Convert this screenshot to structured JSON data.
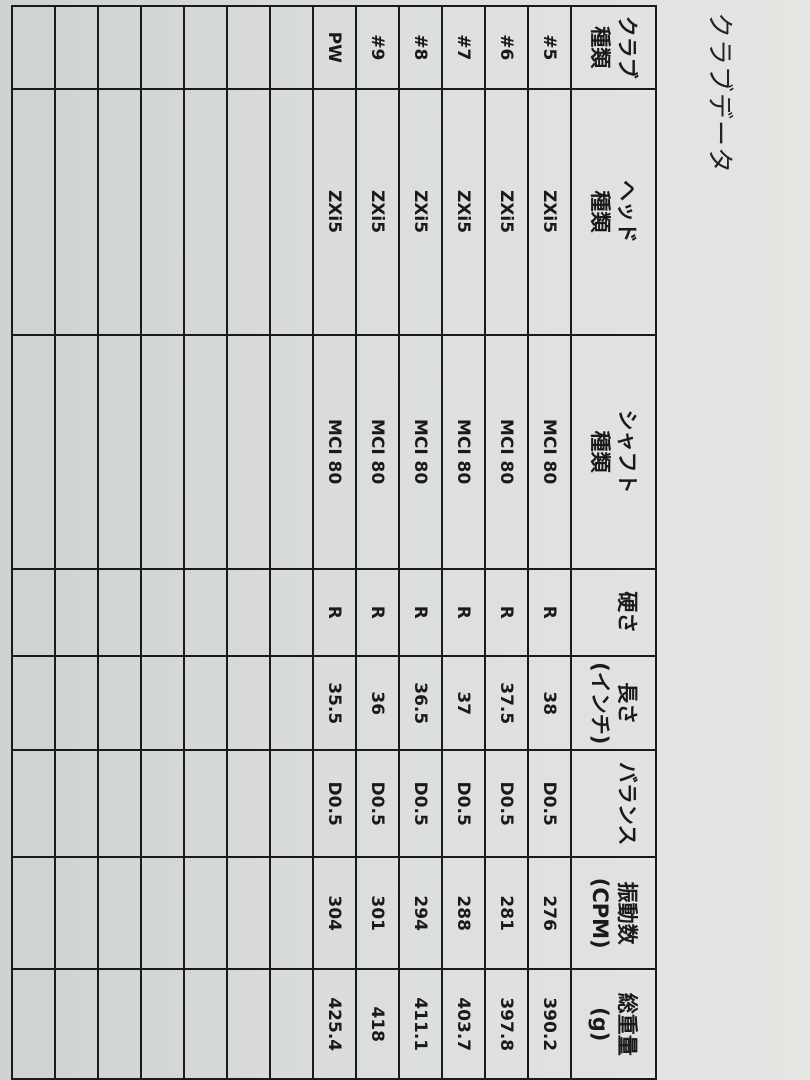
{
  "title": "クラブデータ",
  "headers": [
    {
      "line1": "クラブ",
      "line2": "種類"
    },
    {
      "line1": "ヘッド",
      "line2": "種類"
    },
    {
      "line1": "シャフト",
      "line2": "種類"
    },
    {
      "line1": "硬さ",
      "line2": ""
    },
    {
      "line1": "長さ",
      "line2": "(インチ)"
    },
    {
      "line1": "バランス",
      "line2": ""
    },
    {
      "line1": "振動数",
      "line2": "(CPM)"
    },
    {
      "line1": "総重量",
      "line2": "(g)"
    }
  ],
  "rows": [
    [
      "#5",
      "ZXi5",
      "MCI 80",
      "R",
      "38",
      "D0.5",
      "276",
      "390.2"
    ],
    [
      "#6",
      "ZXi5",
      "MCI 80",
      "R",
      "37.5",
      "D0.5",
      "281",
      "397.8"
    ],
    [
      "#7",
      "ZXi5",
      "MCI 80",
      "R",
      "37",
      "D0.5",
      "288",
      "403.7"
    ],
    [
      "#8",
      "ZXi5",
      "MCI 80",
      "R",
      "36.5",
      "D0.5",
      "294",
      "411.1"
    ],
    [
      "#9",
      "ZXi5",
      "MCI 80",
      "R",
      "36",
      "D0.5",
      "301",
      "418"
    ],
    [
      "PW",
      "ZXi5",
      "MCI 80",
      "R",
      "35.5",
      "D0.5",
      "304",
      "425.4"
    ]
  ],
  "empty_rows": 7
}
